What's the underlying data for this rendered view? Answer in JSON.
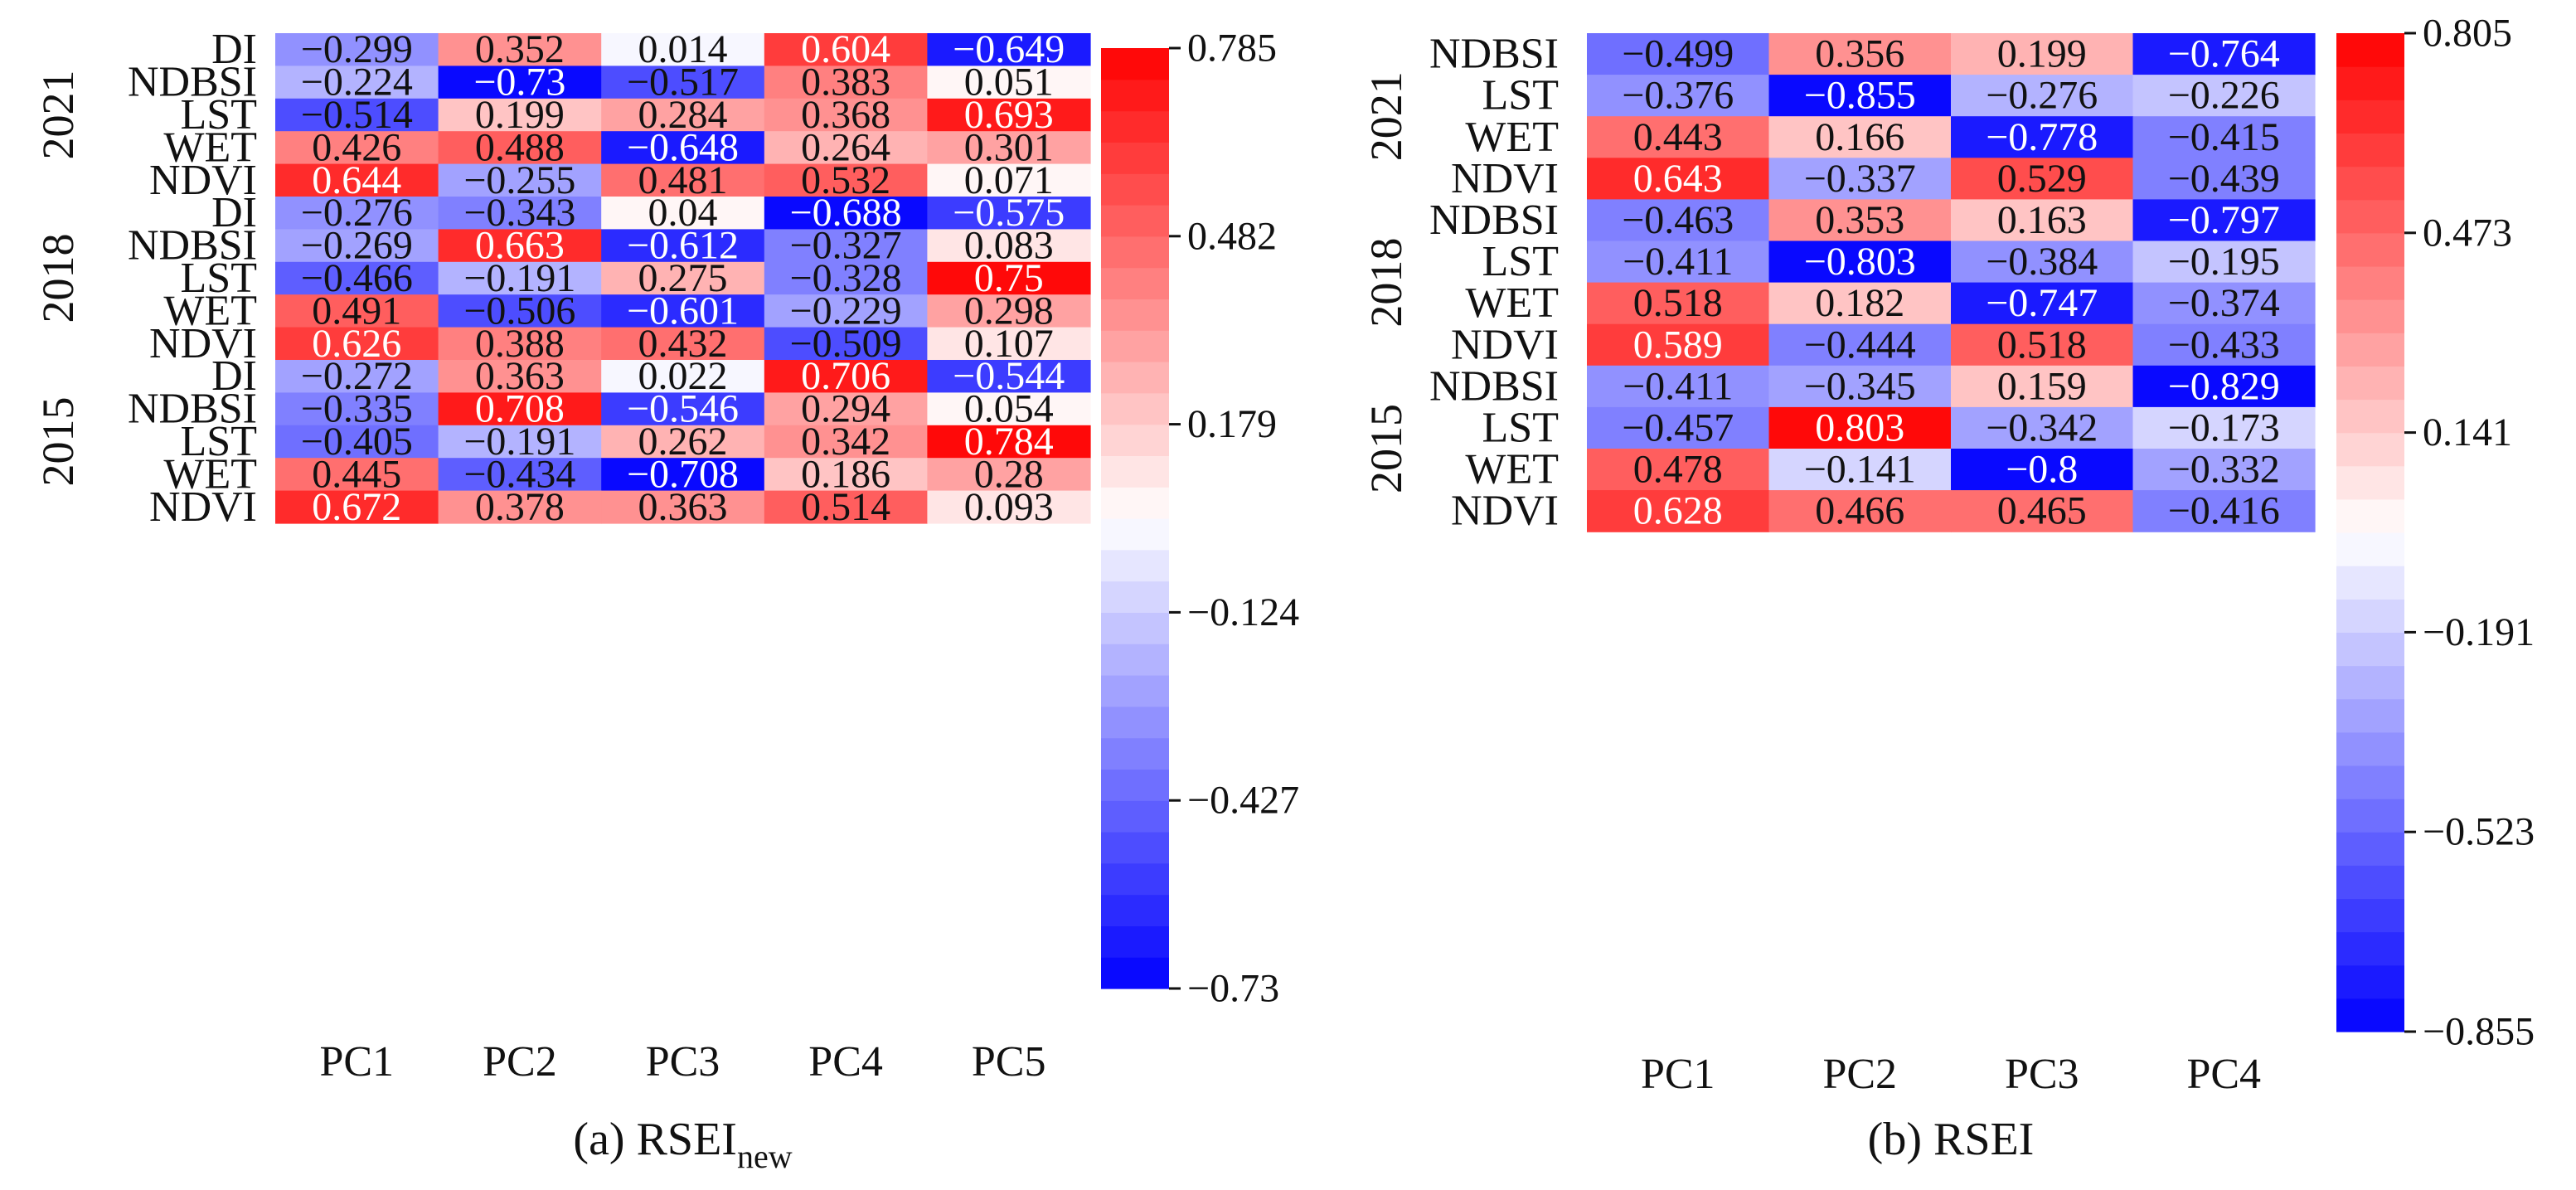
{
  "chart_data": [
    {
      "type": "heatmap",
      "caption": "(a) RSEI",
      "caption_subscript": "new",
      "columns": [
        "PC1",
        "PC2",
        "PC3",
        "PC4",
        "PC5"
      ],
      "groups": [
        {
          "year": "2021",
          "rows": [
            {
              "label": "DI",
              "values": [
                -0.299,
                0.352,
                0.014,
                0.604,
                -0.649
              ],
              "text": [
                "−0.299",
                "0.352",
                "0.014",
                "0.604",
                "−0.649"
              ]
            },
            {
              "label": "NDBSI",
              "values": [
                -0.224,
                -0.73,
                -0.517,
                0.383,
                0.051
              ],
              "text": [
                "−0.224",
                "−0.73",
                "−0.517",
                "0.383",
                "0.051"
              ]
            },
            {
              "label": "LST",
              "values": [
                -0.514,
                0.199,
                0.284,
                0.368,
                0.693
              ],
              "text": [
                "−0.514",
                "0.199",
                "0.284",
                "0.368",
                "0.693"
              ]
            },
            {
              "label": "WET",
              "values": [
                0.426,
                0.488,
                -0.648,
                0.264,
                0.301
              ],
              "text": [
                "0.426",
                "0.488",
                "−0.648",
                "0.264",
                "0.301"
              ]
            },
            {
              "label": "NDVI",
              "values": [
                0.644,
                -0.255,
                0.481,
                0.532,
                0.071
              ],
              "text": [
                "0.644",
                "−0.255",
                "0.481",
                "0.532",
                "0.071"
              ]
            }
          ]
        },
        {
          "year": "2018",
          "rows": [
            {
              "label": "DI",
              "values": [
                -0.276,
                -0.343,
                0.04,
                -0.688,
                -0.575
              ],
              "text": [
                "−0.276",
                "−0.343",
                "0.04",
                "−0.688",
                "−0.575"
              ]
            },
            {
              "label": "NDBSI",
              "values": [
                -0.269,
                0.663,
                -0.612,
                -0.327,
                0.083
              ],
              "text": [
                "−0.269",
                "0.663",
                "−0.612",
                "−0.327",
                "0.083"
              ]
            },
            {
              "label": "LST",
              "values": [
                -0.466,
                -0.191,
                0.275,
                -0.328,
                0.75
              ],
              "text": [
                "−0.466",
                "−0.191",
                "0.275",
                "−0.328",
                "0.75"
              ]
            },
            {
              "label": "WET",
              "values": [
                0.491,
                -0.506,
                -0.601,
                -0.229,
                0.298
              ],
              "text": [
                "0.491",
                "−0.506",
                "−0.601",
                "−0.229",
                "0.298"
              ]
            },
            {
              "label": "NDVI",
              "values": [
                0.626,
                0.388,
                0.432,
                -0.509,
                0.107
              ],
              "text": [
                "0.626",
                "0.388",
                "0.432",
                "−0.509",
                "0.107"
              ]
            }
          ]
        },
        {
          "year": "2015",
          "rows": [
            {
              "label": "DI",
              "values": [
                -0.272,
                0.363,
                0.022,
                0.706,
                -0.544
              ],
              "text": [
                "−0.272",
                "0.363",
                "0.022",
                "0.706",
                "−0.544"
              ]
            },
            {
              "label": "NDBSI",
              "values": [
                -0.335,
                0.708,
                -0.546,
                0.294,
                0.054
              ],
              "text": [
                "−0.335",
                "0.708",
                "−0.546",
                "0.294",
                "0.054"
              ]
            },
            {
              "label": "LST",
              "values": [
                -0.405,
                -0.191,
                0.262,
                0.342,
                0.784
              ],
              "text": [
                "−0.405",
                "−0.191",
                "0.262",
                "0.342",
                "0.784"
              ]
            },
            {
              "label": "WET",
              "values": [
                0.445,
                -0.434,
                -0.708,
                0.186,
                0.28
              ],
              "text": [
                "0.445",
                "−0.434",
                "−0.708",
                "0.186",
                "0.28"
              ]
            },
            {
              "label": "NDVI",
              "values": [
                0.672,
                0.378,
                0.363,
                0.514,
                0.093
              ],
              "text": [
                "0.672",
                "0.378",
                "0.363",
                "0.514",
                "0.093"
              ]
            }
          ]
        }
      ],
      "colorbar": {
        "min": -0.73,
        "max": 0.785,
        "ticks": [
          0.785,
          0.482,
          0.179,
          -0.124,
          -0.427,
          -0.73
        ],
        "tick_labels": [
          "0.785",
          "0.482",
          "0.179",
          "−0.124",
          "−0.427",
          "−0.73"
        ]
      },
      "colors": {
        "low": "#0000ff",
        "mid": "#ffffff",
        "high": "#ff0000"
      }
    },
    {
      "type": "heatmap",
      "caption": "(b) RSEI",
      "columns": [
        "PC1",
        "PC2",
        "PC3",
        "PC4"
      ],
      "groups": [
        {
          "year": "2021",
          "rows": [
            {
              "label": "NDBSI",
              "values": [
                -0.499,
                0.356,
                0.199,
                -0.764
              ],
              "text": [
                "−0.499",
                "0.356",
                "0.199",
                "−0.764"
              ]
            },
            {
              "label": "LST",
              "values": [
                -0.376,
                -0.855,
                -0.276,
                -0.226
              ],
              "text": [
                "−0.376",
                "−0.855",
                "−0.276",
                "−0.226"
              ]
            },
            {
              "label": "WET",
              "values": [
                0.443,
                0.166,
                -0.778,
                -0.415
              ],
              "text": [
                "0.443",
                "0.166",
                "−0.778",
                "−0.415"
              ]
            },
            {
              "label": "NDVI",
              "values": [
                0.643,
                -0.337,
                0.529,
                -0.439
              ],
              "text": [
                "0.643",
                "−0.337",
                "0.529",
                "−0.439"
              ]
            }
          ]
        },
        {
          "year": "2018",
          "rows": [
            {
              "label": "NDBSI",
              "values": [
                -0.463,
                0.353,
                0.163,
                -0.797
              ],
              "text": [
                "−0.463",
                "0.353",
                "0.163",
                "−0.797"
              ]
            },
            {
              "label": "LST",
              "values": [
                -0.411,
                -0.803,
                -0.384,
                -0.195
              ],
              "text": [
                "−0.411",
                "−0.803",
                "−0.384",
                "−0.195"
              ]
            },
            {
              "label": "WET",
              "values": [
                0.518,
                0.182,
                -0.747,
                -0.374
              ],
              "text": [
                "0.518",
                "0.182",
                "−0.747",
                "−0.374"
              ]
            },
            {
              "label": "NDVI",
              "values": [
                0.589,
                -0.444,
                0.518,
                -0.433
              ],
              "text": [
                "0.589",
                "−0.444",
                "0.518",
                "−0.433"
              ]
            }
          ]
        },
        {
          "year": "2015",
          "rows": [
            {
              "label": "NDBSI",
              "values": [
                -0.411,
                -0.345,
                0.159,
                -0.829
              ],
              "text": [
                "−0.411",
                "−0.345",
                "0.159",
                "−0.829"
              ]
            },
            {
              "label": "LST",
              "values": [
                -0.457,
                0.803,
                -0.342,
                -0.173
              ],
              "text": [
                "−0.457",
                "0.803",
                "−0.342",
                "−0.173"
              ]
            },
            {
              "label": "WET",
              "values": [
                0.478,
                -0.141,
                -0.8,
                -0.332
              ],
              "text": [
                "0.478",
                "−0.141",
                "−0.8",
                "−0.332"
              ]
            },
            {
              "label": "NDVI",
              "values": [
                0.628,
                0.466,
                0.465,
                -0.416
              ],
              "text": [
                "0.628",
                "0.466",
                "0.465",
                "−0.416"
              ]
            }
          ]
        }
      ],
      "colorbar": {
        "min": -0.855,
        "max": 0.805,
        "ticks": [
          0.805,
          0.473,
          0.141,
          -0.191,
          -0.523,
          -0.855
        ],
        "tick_labels": [
          "0.805",
          "0.473",
          "0.141",
          "−0.191",
          "−0.523",
          "−0.855"
        ]
      },
      "colors": {
        "low": "#0000ff",
        "mid": "#ffffff",
        "high": "#ff0000"
      }
    }
  ]
}
